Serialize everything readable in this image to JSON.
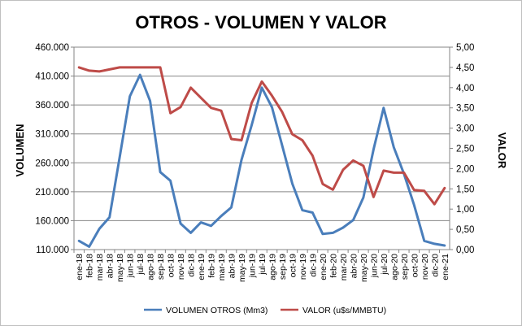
{
  "chart_data": {
    "type": "line",
    "title": "OTROS - VOLUMEN Y VALOR",
    "ylabel_left": "VOLUMEN",
    "ylabel_right": "VALOR",
    "x": [
      "ene-18",
      "feb-18",
      "mar-18",
      "abr-18",
      "may-18",
      "jun-18",
      "jul-18",
      "ago-18",
      "sep-18",
      "oct-18",
      "nov-18",
      "dic-18",
      "ene-19",
      "feb-19",
      "mar-19",
      "abr-19",
      "may-19",
      "jun-19",
      "jul-19",
      "ago-19",
      "sep-19",
      "oct-19",
      "nov-19",
      "dic-19",
      "ene-20",
      "feb-20",
      "mar-20",
      "abr-20",
      "may-20",
      "jun-20",
      "jul-20",
      "ago-20",
      "sep-20",
      "oct-20",
      "nov-20",
      "dic-20",
      "ene-21"
    ],
    "y_left_ticks": [
      "110.000",
      "160.000",
      "210.000",
      "260.000",
      "310.000",
      "360.000",
      "410.000",
      "460.000"
    ],
    "y_right_ticks": [
      "0,00",
      "0,50",
      "1,00",
      "1,50",
      "2,00",
      "2,50",
      "3,00",
      "3,50",
      "4,00",
      "4,50",
      "5,00"
    ],
    "ylim_left": [
      110000,
      460000
    ],
    "ylim_right": [
      0,
      5
    ],
    "grid": "horizontal",
    "legend_position": "bottom",
    "series": [
      {
        "name": "VOLUMEN OTROS (Mm3)",
        "axis": "left",
        "color": "#4a7ebb",
        "values": [
          125000,
          115000,
          146000,
          166000,
          270000,
          375000,
          412000,
          367000,
          244000,
          229000,
          155000,
          139000,
          157000,
          151000,
          168000,
          183000,
          265000,
          325000,
          390000,
          356000,
          290000,
          224000,
          178000,
          174000,
          137000,
          139000,
          148000,
          161000,
          200000,
          283000,
          355000,
          287000,
          241000,
          187000,
          125000,
          120000,
          117000
        ]
      },
      {
        "name": "VALOR (u$s/MMBTU)",
        "axis": "right",
        "color": "#be4b48",
        "values": [
          4.5,
          4.42,
          4.4,
          4.45,
          4.5,
          4.5,
          4.5,
          4.5,
          4.5,
          3.37,
          3.52,
          4.0,
          3.75,
          3.5,
          3.43,
          2.73,
          2.7,
          3.62,
          4.15,
          3.8,
          3.4,
          2.85,
          2.7,
          2.32,
          1.62,
          1.48,
          1.97,
          2.2,
          2.07,
          1.3,
          1.95,
          1.9,
          1.9,
          1.47,
          1.45,
          1.12,
          1.52
        ]
      }
    ]
  }
}
